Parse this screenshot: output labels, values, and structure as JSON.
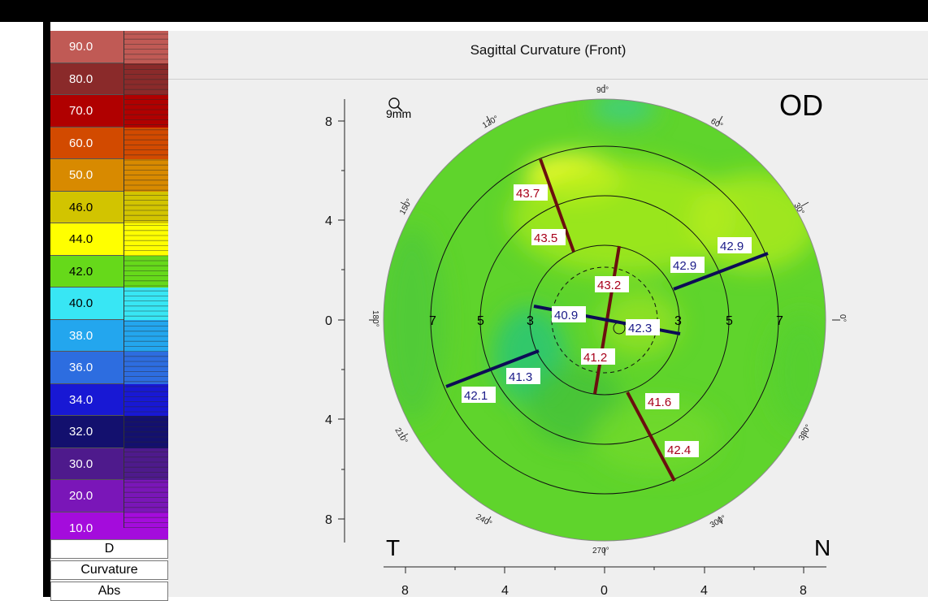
{
  "map": {
    "title": "Sagittal Curvature (Front)",
    "eye": "OD",
    "temporal_label": "T",
    "nasal_label": "N",
    "zoom": "9mm"
  },
  "legend": {
    "steps": [
      {
        "label": "90.0",
        "color": "#c05a55"
      },
      {
        "label": "80.0",
        "color": "#8a2a2a"
      },
      {
        "label": "70.0",
        "color": "#b00000"
      },
      {
        "label": "60.0",
        "color": "#d24a00"
      },
      {
        "label": "50.0",
        "color": "#d88a00"
      },
      {
        "label": "46.0",
        "color": "#d2c400"
      },
      {
        "label": "44.0",
        "color": "#ffff00"
      },
      {
        "label": "42.0",
        "color": "#66d91a"
      },
      {
        "label": "40.0",
        "color": "#38e6f4"
      },
      {
        "label": "38.0",
        "color": "#23a6ee"
      },
      {
        "label": "36.0",
        "color": "#2d6de0"
      },
      {
        "label": "34.0",
        "color": "#1818d4"
      },
      {
        "label": "32.0",
        "color": "#13106e"
      },
      {
        "label": "30.0",
        "color": "#4e1a8c"
      },
      {
        "label": "20.0",
        "color": "#7a16b8"
      },
      {
        "label": "10.0",
        "color": "#a40cdc"
      }
    ],
    "unit": "D",
    "map_type": "Curvature",
    "mode": "Abs"
  },
  "axes": {
    "y_ticks": [
      "8",
      "4",
      "0",
      "4",
      "8"
    ],
    "x_ticks": [
      "8",
      "4",
      "0",
      "4",
      "8"
    ],
    "ring_labels_left": [
      "7",
      "5",
      "3"
    ],
    "ring_labels_right": [
      "3",
      "5",
      "7"
    ],
    "degrees": [
      "90°",
      "60°",
      "30°",
      "0°",
      "330°",
      "300°",
      "270°",
      "240°",
      "210°",
      "180°",
      "150°",
      "120°"
    ]
  },
  "k_values": {
    "steep_outer": "43.7",
    "steep_mid": "43.5",
    "steep_inner": "43.2",
    "steep_inner_low": "41.2",
    "steep_mid_low": "41.6",
    "steep_outer_low": "42.4",
    "flat_outer_right": "42.9",
    "flat_mid_right": "42.9",
    "flat_inner_right": "42.3",
    "flat_inner_left": "40.9",
    "flat_mid_left": "41.3",
    "flat_outer_left": "42.1"
  },
  "colors": {
    "steep_meridian": "#6b0f0f",
    "flat_meridian": "#0c0c55",
    "steep_label": "#a8001a",
    "flat_label": "#1a1a88"
  }
}
